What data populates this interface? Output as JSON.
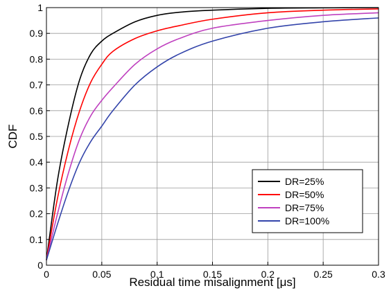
{
  "chart_data": {
    "type": "line",
    "title": "",
    "xlabel": "Residual time misalignment [μs]",
    "ylabel": "CDF",
    "xlim": [
      0,
      0.3
    ],
    "ylim": [
      0,
      1
    ],
    "grid": true,
    "legend_position": "bottom-right",
    "x_ticks": [
      "0",
      "0.05",
      "0.1",
      "0.15",
      "0.2",
      "0.25",
      "0.3"
    ],
    "y_ticks": [
      "0",
      "0.1",
      "0.2",
      "0.3",
      "0.4",
      "0.5",
      "0.6",
      "0.7",
      "0.8",
      "0.9",
      "1"
    ],
    "x": [
      0,
      0.01,
      0.02,
      0.03,
      0.04,
      0.05,
      0.06,
      0.08,
      0.1,
      0.12,
      0.15,
      0.2,
      0.25,
      0.3
    ],
    "series": [
      {
        "name": "DR=25%",
        "color": "#000000",
        "values": [
          0.02,
          0.33,
          0.55,
          0.72,
          0.82,
          0.87,
          0.9,
          0.945,
          0.97,
          0.982,
          0.99,
          0.997,
          0.999,
          1.0
        ]
      },
      {
        "name": "DR=50%",
        "color": "#ff0000",
        "values": [
          0.02,
          0.26,
          0.45,
          0.6,
          0.71,
          0.78,
          0.83,
          0.88,
          0.91,
          0.93,
          0.955,
          0.98,
          0.99,
          0.995
        ]
      },
      {
        "name": "DR=75%",
        "color": "#bf40bf",
        "values": [
          0.02,
          0.2,
          0.36,
          0.49,
          0.58,
          0.64,
          0.69,
          0.78,
          0.84,
          0.88,
          0.92,
          0.95,
          0.97,
          0.98
        ]
      },
      {
        "name": "DR=100%",
        "color": "#3344aa",
        "values": [
          0.02,
          0.16,
          0.29,
          0.4,
          0.48,
          0.54,
          0.6,
          0.7,
          0.77,
          0.82,
          0.87,
          0.92,
          0.945,
          0.96
        ]
      }
    ]
  }
}
